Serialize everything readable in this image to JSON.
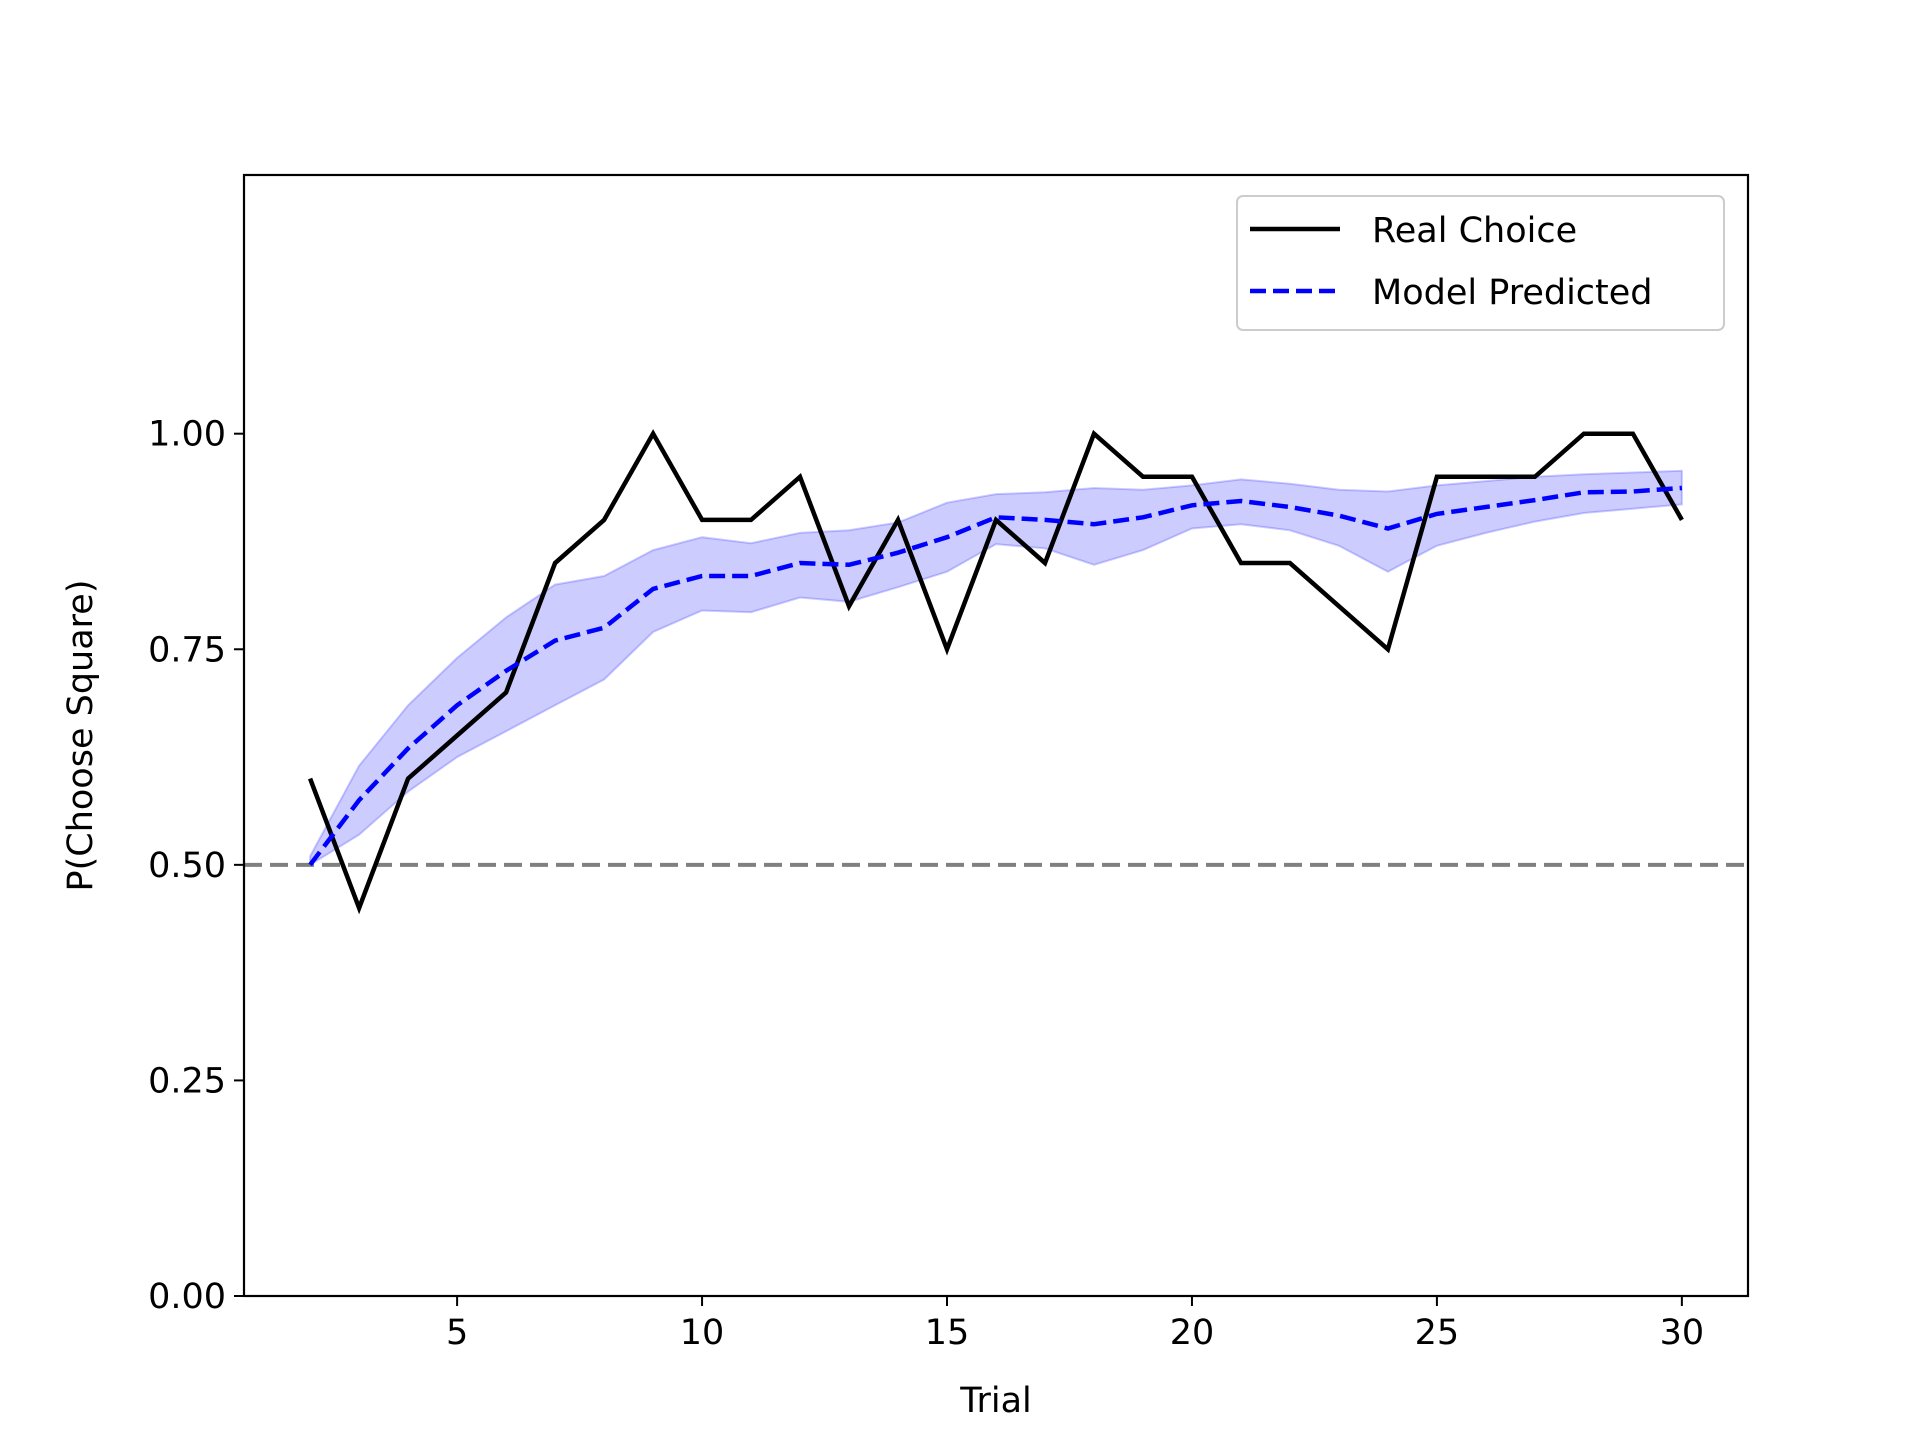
{
  "chart_data": {
    "type": "line",
    "xlabel": "Trial",
    "ylabel": "P(Choose Square)",
    "xlim": [
      0.65,
      31.35
    ],
    "ylim": [
      0,
      1.3
    ],
    "x_ticks": [
      5,
      10,
      15,
      20,
      25,
      30
    ],
    "x_tick_labels": [
      "5",
      "10",
      "15",
      "20",
      "25",
      "30"
    ],
    "y_ticks": [
      0,
      0.25,
      0.5,
      0.75,
      1.0
    ],
    "y_tick_labels": [
      "0.00",
      "0.25",
      "0.50",
      "0.75",
      "1.00"
    ],
    "grid": false,
    "legend_position": "top-right",
    "reference_line": {
      "y": 0.5,
      "style": "dashed",
      "color": "#808080"
    },
    "series": [
      {
        "name": "Real Choice",
        "style": "solid",
        "color": "#000000",
        "x": [
          2,
          3,
          4,
          5,
          6,
          7,
          8,
          9,
          10,
          11,
          12,
          13,
          14,
          15,
          16,
          17,
          18,
          19,
          20,
          21,
          22,
          23,
          24,
          25,
          26,
          27,
          28,
          29,
          30
        ],
        "values": [
          0.6,
          0.45,
          0.6,
          0.65,
          0.7,
          0.85,
          0.9,
          1.0,
          0.9,
          0.9,
          0.95,
          0.8,
          0.9,
          0.75,
          0.9,
          0.85,
          1.0,
          0.95,
          0.95,
          0.85,
          0.85,
          0.8,
          0.75,
          0.95,
          0.95,
          0.95,
          1.0,
          1.0,
          0.9
        ]
      },
      {
        "name": "Model Predicted",
        "style": "dashed",
        "color": "#0000ff",
        "band_color": "#0000ff",
        "x": [
          2,
          3,
          4,
          5,
          6,
          7,
          8,
          9,
          10,
          11,
          12,
          13,
          14,
          15,
          16,
          17,
          18,
          19,
          20,
          21,
          22,
          23,
          24,
          25,
          26,
          27,
          28,
          29,
          30
        ],
        "values": [
          0.5,
          0.575,
          0.635,
          0.685,
          0.725,
          0.76,
          0.775,
          0.82,
          0.835,
          0.835,
          0.85,
          0.848,
          0.862,
          0.88,
          0.903,
          0.9,
          0.895,
          0.903,
          0.917,
          0.922,
          0.915,
          0.905,
          0.89,
          0.907,
          0.915,
          0.923,
          0.932,
          0.933,
          0.937
        ],
        "lower": [
          0.5,
          0.535,
          0.585,
          0.625,
          0.655,
          0.685,
          0.715,
          0.77,
          0.795,
          0.793,
          0.81,
          0.805,
          0.822,
          0.84,
          0.872,
          0.867,
          0.848,
          0.865,
          0.89,
          0.895,
          0.888,
          0.87,
          0.84,
          0.87,
          0.885,
          0.898,
          0.908,
          0.913,
          0.918
        ],
        "upper": [
          0.51,
          0.615,
          0.685,
          0.74,
          0.787,
          0.825,
          0.835,
          0.865,
          0.88,
          0.873,
          0.885,
          0.888,
          0.897,
          0.92,
          0.93,
          0.932,
          0.937,
          0.935,
          0.94,
          0.947,
          0.942,
          0.935,
          0.933,
          0.94,
          0.945,
          0.95,
          0.953,
          0.955,
          0.957
        ]
      }
    ]
  }
}
